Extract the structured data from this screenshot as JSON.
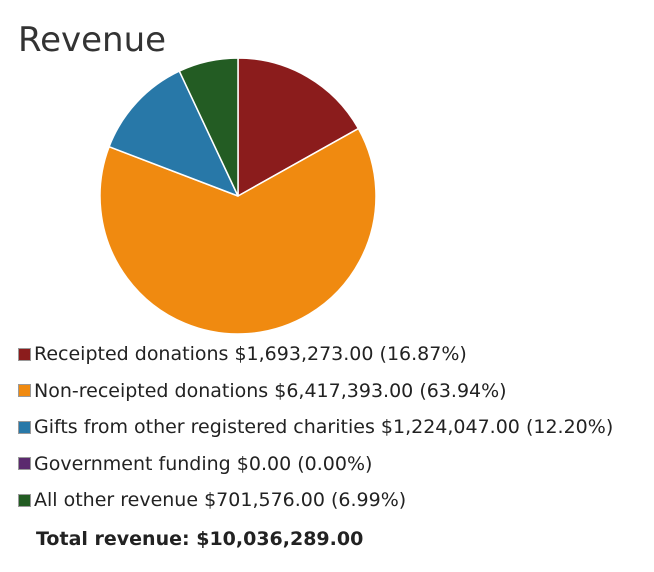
{
  "title": "Revenue",
  "chart_data": {
    "type": "pie",
    "title": "Revenue",
    "slices": [
      {
        "label": "Receipted donations",
        "amount": "$1,693,273.00",
        "percent_label": "(16.87%)",
        "value": 1693273.0,
        "percent": 16.87,
        "color": "#8b1c1c"
      },
      {
        "label": "Non-receipted donations",
        "amount": "$6,417,393.00",
        "percent_label": "(63.94%)",
        "value": 6417393.0,
        "percent": 63.94,
        "color": "#f08a10"
      },
      {
        "label": "Gifts from other registered charities",
        "amount": "$1,224,047.00",
        "percent_label": "(12.20%)",
        "value": 1224047.0,
        "percent": 12.2,
        "color": "#2878a8"
      },
      {
        "label": "Government funding",
        "amount": "$0.00",
        "percent_label": "(0.00%)",
        "value": 0.0,
        "percent": 0.0,
        "color": "#5b2a6e"
      },
      {
        "label": "All other revenue",
        "amount": "$701,576.00",
        "percent_label": "(6.99%)",
        "value": 701576.0,
        "percent": 6.99,
        "color": "#235c23"
      }
    ],
    "legend_position": "bottom",
    "slice_border_color": "#ffffff"
  },
  "total": {
    "label": "Total revenue:",
    "value": "$10,036,289.00"
  }
}
